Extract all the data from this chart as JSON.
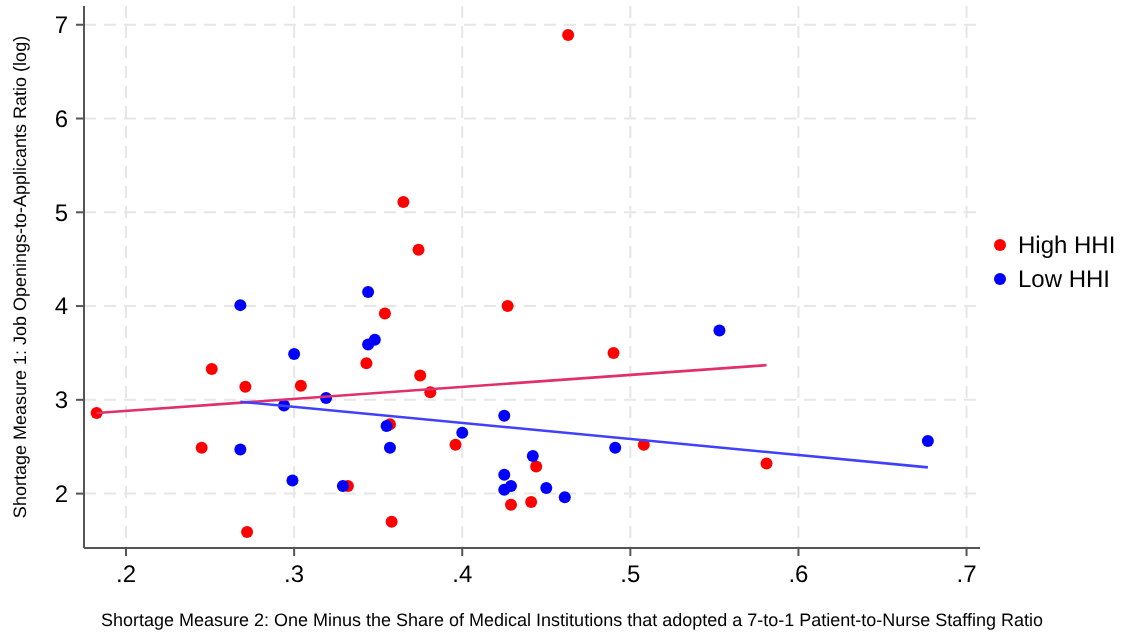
{
  "chart_data": {
    "type": "scatter",
    "xlabel": "Shortage Measure 2: One Minus the Share of Medical Institutions that adopted a 7-to-1 Patient-to-Nurse Staffing Ratio",
    "ylabel": "Shortage Measure 1: Job Openings-to-Applicants Ratio (log)",
    "xlim": [
      0.175,
      0.708
    ],
    "ylim": [
      1.42,
      7.2
    ],
    "xticks": [
      {
        "value": 0.2,
        "label": ".2"
      },
      {
        "value": 0.3,
        "label": ".3"
      },
      {
        "value": 0.4,
        "label": ".4"
      },
      {
        "value": 0.5,
        "label": ".5"
      },
      {
        "value": 0.6,
        "label": ".6"
      },
      {
        "value": 0.7,
        "label": ".7"
      }
    ],
    "yticks": [
      2,
      3,
      4,
      5,
      6,
      7
    ],
    "grid": true,
    "legend": "right",
    "marker": "circle",
    "series": [
      {
        "name": "High HHI",
        "color": "#ff0000",
        "x": [
          0.1825,
          0.251,
          0.271,
          0.304,
          0.354,
          0.343,
          0.375,
          0.381,
          0.357,
          0.427,
          0.245,
          0.396,
          0.444,
          0.332,
          0.429,
          0.441,
          0.358,
          0.272,
          0.463,
          0.365,
          0.374,
          0.49,
          0.508,
          0.581
        ],
        "values": [
          2.86,
          3.33,
          3.14,
          3.15,
          3.92,
          3.39,
          3.26,
          3.08,
          2.74,
          4.0,
          2.49,
          2.52,
          2.29,
          2.08,
          1.88,
          1.91,
          1.7,
          1.59,
          6.89,
          5.11,
          4.6,
          3.5,
          2.52,
          2.32
        ]
      },
      {
        "name": "Low HHI",
        "color": "#0000ff",
        "x": [
          0.344,
          0.268,
          0.344,
          0.348,
          0.3,
          0.319,
          0.294,
          0.355,
          0.357,
          0.268,
          0.4,
          0.425,
          0.299,
          0.329,
          0.442,
          0.425,
          0.429,
          0.425,
          0.45,
          0.461,
          0.553,
          0.491,
          0.677
        ],
        "values": [
          4.15,
          4.01,
          3.59,
          3.64,
          3.49,
          3.02,
          2.94,
          2.72,
          2.49,
          2.47,
          2.65,
          2.83,
          2.14,
          2.08,
          2.4,
          2.2,
          2.08,
          2.04,
          2.06,
          1.96,
          3.74,
          2.49,
          2.56
        ]
      },
      {
        "type": "line",
        "marker": "none",
        "color": "#e0306a",
        "x": [
          0.1825,
          0.581
        ],
        "values": [
          2.86,
          3.37
        ]
      },
      {
        "type": "line",
        "marker": "none",
        "color": "#4040ff",
        "x": [
          0.268,
          0.677
        ],
        "values": [
          2.98,
          2.28
        ]
      }
    ]
  }
}
